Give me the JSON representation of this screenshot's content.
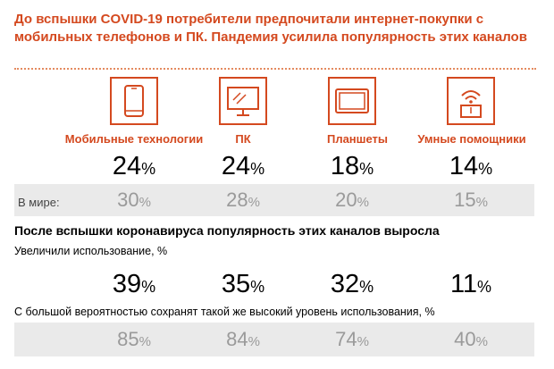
{
  "headline": "До вспышки COVID-19 потребители предпочитали интернет-покупки с мобильных телефонов и ПК. Пандемия усилила популярность этих каналов",
  "percent_sign": "%",
  "categories": [
    {
      "label": "Мобильные технологии",
      "icon": "smartphone-icon",
      "before": "24",
      "world": "30",
      "increased": "39",
      "retain": "85"
    },
    {
      "label": "ПК",
      "icon": "monitor-icon",
      "before": "24",
      "world": "28",
      "increased": "35",
      "retain": "84"
    },
    {
      "label": "Планшеты",
      "icon": "tablet-icon",
      "before": "18",
      "world": "20",
      "increased": "32",
      "retain": "74"
    },
    {
      "label": "Умные помощники",
      "icon": "smart-speaker-icon",
      "before": "14",
      "world": "15",
      "increased": "11",
      "retain": "40"
    }
  ],
  "world_label": "В мире:",
  "after_heading": "После вспышки коронавируса популярность этих каналов выросла",
  "increased_label": "Увеличили использование, %",
  "retain_label": "С большой вероятностью сохранят такой же высокий уровень использования, %",
  "colors": {
    "accent": "#d4491f",
    "gray_band": "#eaeaea",
    "gray_text": "#9a9a9a"
  }
}
